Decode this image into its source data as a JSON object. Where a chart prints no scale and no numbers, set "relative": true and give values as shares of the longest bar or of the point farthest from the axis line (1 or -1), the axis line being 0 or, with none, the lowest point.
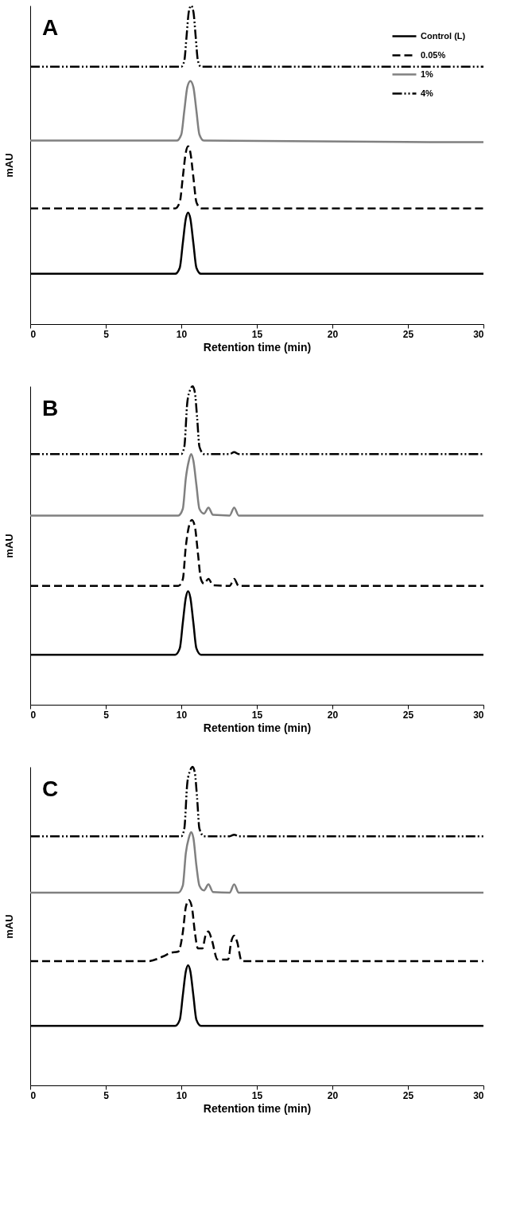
{
  "chart_data": [
    {
      "type": "line",
      "title": "A",
      "xlabel": "Retention time (min)",
      "ylabel": "mAU",
      "relative": true,
      "xlim": [
        0,
        30
      ],
      "xticks": [
        0,
        5,
        10,
        15,
        20,
        25,
        30
      ],
      "legend": "top right",
      "series": [
        {
          "name": "Control (L)",
          "color": "#000000",
          "line_style": "solid",
          "x": [
            0,
            9.6,
            9.9,
            10.1,
            10.3,
            10.45,
            10.6,
            10.8,
            11.0,
            11.3,
            30
          ],
          "values": [
            0.158,
            0.158,
            0.177,
            0.254,
            0.331,
            0.35,
            0.331,
            0.254,
            0.177,
            0.158,
            0.158
          ]
        },
        {
          "name": "0.05%",
          "color": "#000000",
          "line_style": "dashed",
          "x": [
            0,
            9.6,
            9.9,
            10.1,
            10.3,
            10.45,
            10.6,
            10.8,
            11.0,
            11.3,
            30
          ],
          "values": [
            0.363,
            0.363,
            0.383,
            0.461,
            0.539,
            0.558,
            0.539,
            0.461,
            0.383,
            0.363,
            0.363
          ]
        },
        {
          "name": "1%",
          "color": "#808080",
          "line_style": "solid",
          "x": [
            0,
            9.7,
            10.0,
            10.2,
            10.4,
            10.6,
            10.8,
            11.0,
            11.2,
            11.5,
            30
          ],
          "values": [
            0.576,
            0.576,
            0.595,
            0.67,
            0.744,
            0.763,
            0.744,
            0.67,
            0.595,
            0.576,
            0.571
          ]
        },
        {
          "name": "4%",
          "color": "#000000",
          "line_style": "dashdot",
          "x": [
            0,
            10.0,
            10.2,
            10.35,
            10.5,
            10.65,
            10.8,
            10.95,
            11.1,
            11.3,
            30
          ],
          "values": [
            0.808,
            0.808,
            0.827,
            0.904,
            0.981,
            1,
            0.981,
            0.904,
            0.827,
            0.808,
            0.808
          ]
        }
      ]
    },
    {
      "type": "line",
      "title": "B",
      "xlabel": "Retention time (min)",
      "ylabel": "mAU",
      "relative": true,
      "xlim": [
        0,
        30
      ],
      "xticks": [
        0,
        5,
        10,
        15,
        20,
        25,
        30
      ],
      "series": [
        {
          "color": "#000000",
          "line_style": "solid",
          "x": [
            0,
            9.6,
            9.9,
            10.1,
            10.3,
            10.45,
            10.6,
            10.8,
            11.0,
            11.3,
            30
          ],
          "values": [
            0.157,
            0.157,
            0.177,
            0.257,
            0.336,
            0.356,
            0.336,
            0.257,
            0.177,
            0.157,
            0.157
          ]
        },
        {
          "color": "#000000",
          "line_style": "dashed",
          "x": [
            0,
            9.8,
            10.1,
            10.3,
            10.5,
            10.7,
            10.9,
            11.1,
            11.3,
            11.5,
            11.8,
            12.1,
            13.2,
            13.5,
            13.8,
            30
          ],
          "values": [
            0.373,
            0.373,
            0.394,
            0.497,
            0.559,
            0.58,
            0.559,
            0.476,
            0.394,
            0.38,
            0.395,
            0.375,
            0.373,
            0.395,
            0.373,
            0.373
          ]
        },
        {
          "color": "#808080",
          "line_style": "solid",
          "x": [
            0,
            9.8,
            10.1,
            10.3,
            10.5,
            10.65,
            10.8,
            11.0,
            11.2,
            11.5,
            11.8,
            12.1,
            13.2,
            13.5,
            13.8,
            30
          ],
          "values": [
            0.594,
            0.594,
            0.615,
            0.711,
            0.766,
            0.787,
            0.766,
            0.69,
            0.615,
            0.6,
            0.619,
            0.596,
            0.594,
            0.619,
            0.594,
            0.594
          ]
        },
        {
          "color": "#000000",
          "line_style": "dashdot",
          "x": [
            0,
            10.0,
            10.2,
            10.4,
            10.6,
            10.75,
            10.9,
            11.05,
            11.2,
            11.5,
            13.2,
            13.5,
            13.8,
            30
          ],
          "values": [
            0.787,
            0.787,
            0.81,
            0.95,
            0.99,
            1,
            0.98,
            0.9,
            0.81,
            0.787,
            0.787,
            0.793,
            0.787,
            0.787
          ]
        }
      ]
    },
    {
      "type": "line",
      "title": "C",
      "xlabel": "Retention time (min)",
      "ylabel": "mAU",
      "relative": true,
      "xlim": [
        0,
        30
      ],
      "xticks": [
        0,
        5,
        10,
        15,
        20,
        25,
        30
      ],
      "series": [
        {
          "color": "#000000",
          "line_style": "solid",
          "x": [
            0,
            9.6,
            9.9,
            10.1,
            10.3,
            10.45,
            10.6,
            10.8,
            11.0,
            11.3,
            30
          ],
          "values": [
            0.187,
            0.187,
            0.206,
            0.282,
            0.358,
            0.377,
            0.358,
            0.282,
            0.206,
            0.187,
            0.187
          ]
        },
        {
          "color": "#000000",
          "line_style": "dashed",
          "x": [
            0,
            7.8,
            8.8,
            9.3,
            9.8,
            10.1,
            10.3,
            10.5,
            10.7,
            10.9,
            11.1,
            11.4,
            11.6,
            11.8,
            12.0,
            12.4,
            13.1,
            13.3,
            13.5,
            13.7,
            14.0,
            30
          ],
          "values": [
            0.39,
            0.39,
            0.405,
            0.416,
            0.42,
            0.48,
            0.56,
            0.582,
            0.56,
            0.48,
            0.43,
            0.43,
            0.47,
            0.483,
            0.46,
            0.395,
            0.395,
            0.45,
            0.47,
            0.45,
            0.39,
            0.39
          ]
        },
        {
          "color": "#808080",
          "line_style": "solid",
          "x": [
            0,
            9.8,
            10.1,
            10.3,
            10.5,
            10.65,
            10.8,
            11.0,
            11.2,
            11.5,
            11.8,
            12.1,
            13.2,
            13.5,
            13.8,
            30
          ],
          "values": [
            0.605,
            0.605,
            0.627,
            0.729,
            0.777,
            0.795,
            0.777,
            0.69,
            0.627,
            0.612,
            0.631,
            0.607,
            0.605,
            0.631,
            0.605,
            0.605
          ]
        },
        {
          "color": "#000000",
          "line_style": "dashdot",
          "x": [
            0,
            10.0,
            10.2,
            10.4,
            10.6,
            10.75,
            10.9,
            11.05,
            11.2,
            11.5,
            13.2,
            13.5,
            13.8,
            30
          ],
          "values": [
            0.782,
            0.782,
            0.806,
            0.95,
            0.99,
            1,
            0.98,
            0.9,
            0.806,
            0.782,
            0.782,
            0.787,
            0.782,
            0.782
          ]
        }
      ]
    }
  ]
}
